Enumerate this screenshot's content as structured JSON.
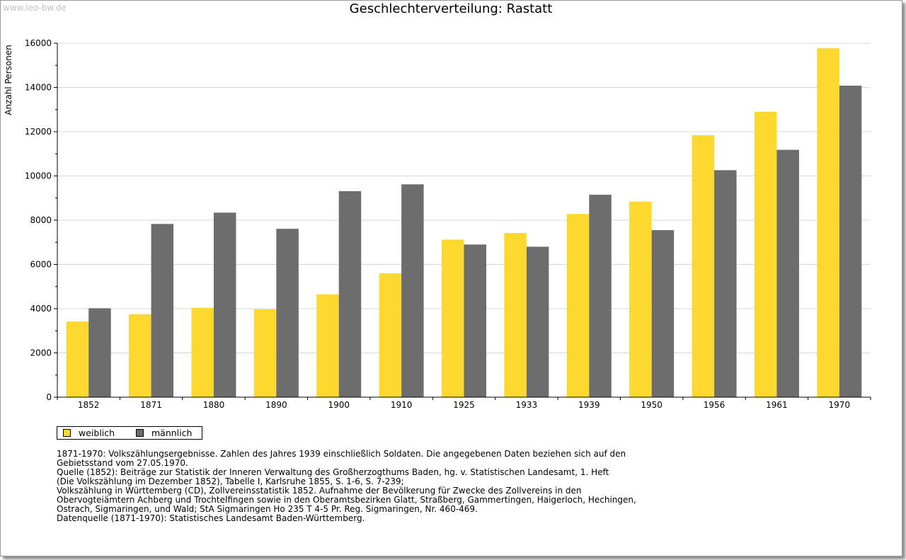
{
  "watermark": "www.leo-bw.de",
  "chart_data": {
    "type": "bar",
    "title": "Geschlechterverteilung: Rastatt",
    "xlabel": "",
    "ylabel": "Anzahl Personen",
    "ylim": [
      0,
      16000
    ],
    "y_ticks": [
      0,
      2000,
      4000,
      6000,
      8000,
      10000,
      12000,
      14000,
      16000
    ],
    "grid": true,
    "legend_position": "bottom-left",
    "categories": [
      "1852",
      "1871",
      "1880",
      "1890",
      "1900",
      "1910",
      "1925",
      "1933",
      "1939",
      "1950",
      "1956",
      "1961",
      "1970"
    ],
    "series": [
      {
        "name": "weiblich",
        "color": "#fdd82f",
        "values": [
          3420,
          3750,
          4040,
          3970,
          4650,
          5600,
          7120,
          7420,
          8280,
          8840,
          11840,
          12900,
          15770
        ]
      },
      {
        "name": "männlich",
        "color": "#6d6d6d",
        "values": [
          4020,
          7830,
          8340,
          7610,
          9310,
          9620,
          6900,
          6800,
          9150,
          7550,
          10260,
          11180,
          14080
        ]
      }
    ]
  },
  "notes": [
    "1871-1970: Volkszählungsergebnisse. Zahlen des Jahres 1939 einschließlich Soldaten. Die angegebenen Daten beziehen sich auf den",
    "Gebietsstand vom 27.05.1970.",
    "Quelle (1852): Beiträge zur Statistik der Inneren Verwaltung des Großherzogthums Baden, hg. v. Statistischen Landesamt, 1. Heft",
    "(Die Volkszählung im Dezember 1852), Tabelle I, Karlsruhe 1855, S. 1-6, S. 7-239;",
    "Volkszählung in Württemberg (CD), Zollvereinsstatistik 1852. Aufnahme der Bevölkerung für Zwecke des Zollvereins in den",
    "Obervogteiämtern Achberg und Trochtelfingen sowie in den Oberamtsbezirken Glatt, Straßberg, Gammertingen, Haigerloch, Hechingen,",
    "Ostrach, Sigmaringen, und Wald; StA Sigmaringen Ho 235 T 4-5 Pr. Reg. Sigmaringen, Nr. 460-469.",
    "",
    "Datenquelle (1871-1970): Statistisches Landesamt Baden-Württemberg."
  ]
}
